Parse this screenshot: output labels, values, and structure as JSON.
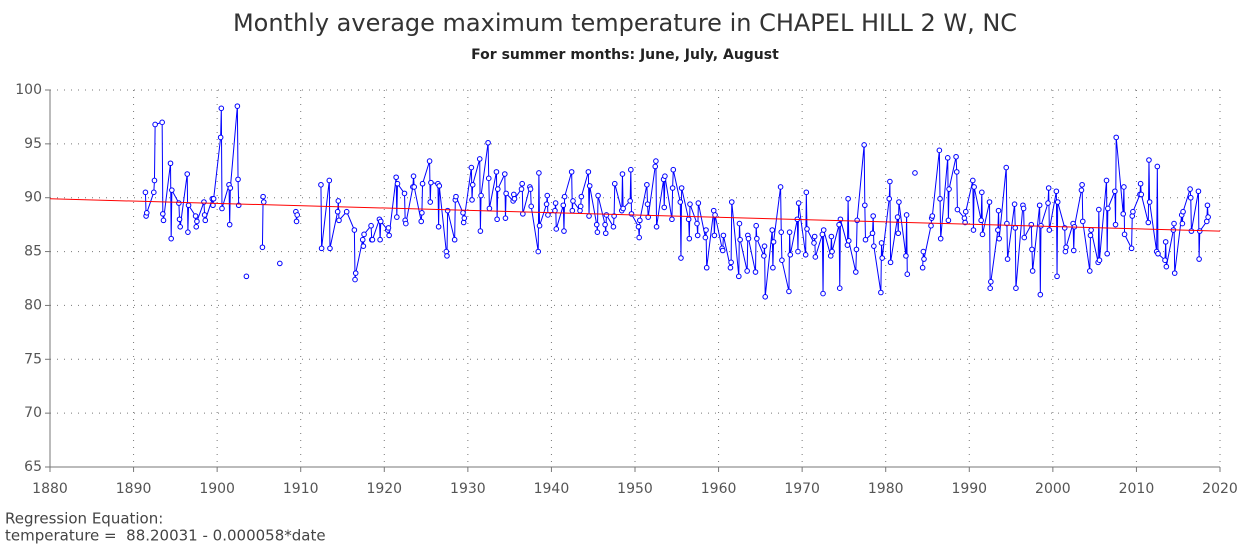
{
  "chart_data": {
    "type": "line",
    "title": "Monthly average maximum temperature in CHAPEL HILL 2 W, NC",
    "subtitle": "For summer months: June, July, August",
    "regression_label": "Regression Equation:",
    "regression_equation": "temperature =  88.20031 - 0.000058*date",
    "xlim": [
      1880,
      2020
    ],
    "xticks": [
      1880,
      1890,
      1900,
      1910,
      1920,
      1930,
      1940,
      1950,
      1960,
      1970,
      1980,
      1990,
      2000,
      2010,
      2020
    ],
    "ylim": [
      65,
      100
    ],
    "yticks": [
      65,
      70,
      75,
      80,
      85,
      90,
      95,
      100
    ],
    "grid": true,
    "series": [
      {
        "color": "#0000ff",
        "markers": true,
        "x": [
          1891.42,
          1891.5,
          1891.58,
          1892.42,
          1892.5,
          1892.58,
          1893.42,
          1893.5,
          1893.58,
          1894.42,
          1894.5,
          1894.58,
          1895.42,
          1895.5,
          1895.58,
          1896.42,
          1896.5,
          1896.58,
          1897.42,
          1897.5,
          1897.58,
          1898.42,
          1898.5,
          1898.58,
          1899.42,
          1899.5,
          1899.58,
          1900.42,
          1900.5,
          1900.58,
          1901.42,
          1901.5,
          1901.58,
          1902.42,
          1902.5,
          1902.58,
          1902.9,
          1903.5,
          1904.2,
          1905.42,
          1905.5,
          1905.58,
          1906.2,
          1907.5,
          1908.5,
          1909.42,
          1909.5,
          1909.58,
          1911.0,
          1912.42,
          1912.5,
          1913.42,
          1913.5,
          1914.42,
          1914.5,
          1914.58,
          1915.5,
          1916.42,
          1916.5,
          1916.58,
          1917.42,
          1917.5,
          1917.58,
          1918.42,
          1918.5,
          1918.58,
          1919.42,
          1919.5,
          1919.58,
          1920.42,
          1920.5,
          1920.58,
          1921.42,
          1921.5,
          1921.58,
          1922.42,
          1922.5,
          1922.58,
          1923.42,
          1923.5,
          1923.58,
          1924.42,
          1924.5,
          1924.58,
          1925.42,
          1925.5,
          1925.58,
          1926.42,
          1926.5,
          1926.58,
          1927.42,
          1927.5,
          1927.58,
          1928.42,
          1928.5,
          1928.58,
          1929.42,
          1929.5,
          1929.58,
          1930.42,
          1930.5,
          1930.58,
          1931.42,
          1931.5,
          1931.58,
          1932.42,
          1932.5,
          1932.58,
          1933.42,
          1933.5,
          1933.58,
          1934.42,
          1934.5,
          1934.58,
          1935.42,
          1935.5,
          1935.58,
          1936.42,
          1936.5,
          1936.58,
          1937.42,
          1937.5,
          1937.58,
          1938.42,
          1938.5,
          1938.58,
          1939.42,
          1939.5,
          1939.58,
          1940.42,
          1940.5,
          1940.58,
          1941.42,
          1941.5,
          1941.58,
          1942.42,
          1942.5,
          1942.58,
          1943.42,
          1943.5,
          1943.58,
          1944.42,
          1944.5,
          1944.58,
          1945.42,
          1945.5,
          1945.58,
          1946.42,
          1946.5,
          1946.58,
          1947.42,
          1947.5,
          1947.58,
          1948.42,
          1948.5,
          1948.58,
          1949.42,
          1949.5,
          1949.58,
          1950.42,
          1950.5,
          1950.58,
          1951.42,
          1951.5,
          1951.58,
          1952.42,
          1952.5,
          1952.58,
          1953.42,
          1953.5,
          1953.58,
          1954.42,
          1954.5,
          1954.58,
          1955.42,
          1955.5,
          1955.58,
          1956.42,
          1956.5,
          1956.58,
          1957.42,
          1957.5,
          1957.58,
          1958.42,
          1958.5,
          1958.58,
          1959.42,
          1959.5,
          1959.58,
          1960.42,
          1960.5,
          1960.58,
          1961.42,
          1961.5,
          1961.58,
          1962.42,
          1962.5,
          1962.58,
          1963.42,
          1963.5,
          1963.58,
          1964.42,
          1964.5,
          1964.58,
          1965.42,
          1965.5,
          1965.58,
          1966.42,
          1966.5,
          1966.58,
          1967.42,
          1967.5,
          1967.58,
          1968.42,
          1968.5,
          1968.58,
          1969.42,
          1969.5,
          1969.58,
          1970.42,
          1970.5,
          1970.58,
          1971.42,
          1971.5,
          1971.58,
          1972.42,
          1972.5,
          1972.58,
          1973.42,
          1973.5,
          1973.58,
          1974.42,
          1974.5,
          1974.58,
          1975.42,
          1975.5,
          1975.58,
          1976.42,
          1976.5,
          1976.58,
          1977.42,
          1977.5,
          1977.58,
          1978.42,
          1978.5,
          1978.58,
          1979.42,
          1979.5,
          1979.58,
          1980.42,
          1980.5,
          1980.58,
          1981.42,
          1981.5,
          1981.58,
          1982.42,
          1982.5,
          1982.58,
          1983.0,
          1983.5,
          1984.0,
          1984.42,
          1984.5,
          1984.58,
          1985.42,
          1985.5,
          1985.58,
          1986.42,
          1986.5,
          1986.58,
          1987.42,
          1987.5,
          1987.58,
          1988.42,
          1988.5,
          1988.58,
          1989.42,
          1989.5,
          1989.58,
          1990.42,
          1990.5,
          1990.58,
          1991.42,
          1991.5,
          1991.58,
          1992.42,
          1992.5,
          1992.58,
          1993.42,
          1993.5,
          1993.58,
          1994.42,
          1994.5,
          1994.58,
          1995.42,
          1995.5,
          1995.58,
          1996.42,
          1996.5,
          1996.58,
          1997.42,
          1997.5,
          1997.58,
          1998.42,
          1998.5,
          1998.58,
          1999.42,
          1999.5,
          1999.58,
          2000.42,
          2000.5,
          2000.58,
          2001.42,
          2001.5,
          2001.58,
          2002.42,
          2002.5,
          2002.58,
          2003.42,
          2003.5,
          2003.58,
          2004.42,
          2004.5,
          2004.58,
          2005.42,
          2005.5,
          2005.58,
          2006.42,
          2006.5,
          2006.58,
          2007.42,
          2007.5,
          2007.58,
          2008.42,
          2008.5,
          2008.58,
          2009.42,
          2009.5,
          2009.58,
          2010.42,
          2010.5,
          2010.58,
          2011.42,
          2011.5,
          2011.58,
          2012.42,
          2012.5,
          2012.58,
          2013.42,
          2013.5,
          2013.58,
          2014.42,
          2014.5,
          2014.58,
          2015.42,
          2015.5,
          2015.58,
          2016.42,
          2016.5,
          2016.58,
          2017.42,
          2017.5,
          2017.58,
          2018.42,
          2018.5,
          2018.58
        ],
        "values": [
          90.5,
          88.3,
          88.6,
          90.5,
          91.6,
          96.8,
          97.0,
          88.5,
          87.9,
          93.2,
          86.2,
          90.7,
          89.5,
          88.0,
          87.3,
          92.2,
          86.8,
          89.3,
          88.3,
          87.3,
          87.8,
          89.6,
          88.4,
          87.9,
          89.9,
          89.3,
          89.9,
          95.6,
          98.3,
          89.0,
          91.2,
          87.5,
          90.9,
          98.5,
          91.7,
          89.3,
          null,
          82.7,
          null,
          85.4,
          90.1,
          89.6,
          null,
          83.9,
          null,
          88.7,
          87.8,
          88.4,
          null,
          91.2,
          85.3,
          91.6,
          85.3,
          88.7,
          89.7,
          87.9,
          88.7,
          87.0,
          82.4,
          83.0,
          86.1,
          85.5,
          86.6,
          87.4,
          86.1,
          86.1,
          88.0,
          86.1,
          87.8,
          87.0,
          87.2,
          86.5,
          91.9,
          88.2,
          91.3,
          90.4,
          87.9,
          87.6,
          91.0,
          92.0,
          91.0,
          87.8,
          88.6,
          91.3,
          93.4,
          89.6,
          91.4,
          91.3,
          87.3,
          91.1,
          85.0,
          84.6,
          88.8,
          86.1,
          89.8,
          90.1,
          88.6,
          87.7,
          88.1,
          92.8,
          89.8,
          91.2,
          93.6,
          86.9,
          90.2,
          95.1,
          91.8,
          89.0,
          92.4,
          88.0,
          90.8,
          92.2,
          88.1,
          90.4,
          89.7,
          90.3,
          89.9,
          90.8,
          91.3,
          88.5,
          91.0,
          90.8,
          89.2,
          85.0,
          92.3,
          87.4,
          89.4,
          90.2,
          88.4,
          88.8,
          89.5,
          87.1,
          89.3,
          86.9,
          90.1,
          92.4,
          88.8,
          89.7,
          88.8,
          89.2,
          90.1,
          92.4,
          88.3,
          91.1,
          87.5,
          86.8,
          90.2,
          87.5,
          86.7,
          88.4,
          87.3,
          88.3,
          91.3,
          88.8,
          92.2,
          89.0,
          89.7,
          92.6,
          88.5,
          87.3,
          86.3,
          87.9,
          91.2,
          89.4,
          88.2,
          92.9,
          93.4,
          87.3,
          91.7,
          89.1,
          92.0,
          88.0,
          90.9,
          92.6,
          89.6,
          84.4,
          90.9,
          88.0,
          86.2,
          89.4,
          87.6,
          86.5,
          89.5,
          86.3,
          87.0,
          83.5,
          88.8,
          86.5,
          88.4,
          85.3,
          85.1,
          86.5,
          83.5,
          84.0,
          89.6,
          82.7,
          87.6,
          86.1,
          83.2,
          86.5,
          86.2,
          83.1,
          87.4,
          86.2,
          84.6,
          85.5,
          80.8,
          87.0,
          83.5,
          85.9,
          91.0,
          86.8,
          84.2,
          81.3,
          86.8,
          84.7,
          88.0,
          85.0,
          89.5,
          84.7,
          90.5,
          87.1,
          85.8,
          86.4,
          84.5,
          86.6,
          81.1,
          87.0,
          84.6,
          86.4,
          85.0,
          87.5,
          81.6,
          88.0,
          85.6,
          89.9,
          86.0,
          83.1,
          85.2,
          87.9,
          94.9,
          89.3,
          86.1,
          86.7,
          88.3,
          85.5,
          81.2,
          85.8,
          84.4,
          89.9,
          91.5,
          84.0,
          88.2,
          86.7,
          89.6,
          84.6,
          88.4,
          82.9,
          null,
          92.3,
          null,
          83.5,
          85.0,
          84.3,
          87.4,
          88.1,
          88.3,
          94.4,
          89.9,
          86.2,
          93.7,
          87.9,
          90.8,
          93.8,
          92.4,
          88.9,
          88.1,
          87.7,
          88.7,
          91.6,
          87.0,
          91.0,
          87.9,
          90.5,
          86.6,
          89.6,
          81.6,
          82.2,
          87.0,
          88.8,
          86.2,
          92.8,
          87.6,
          84.3,
          89.4,
          87.2,
          81.6,
          89.3,
          89.0,
          86.3,
          87.5,
          85.2,
          83.2,
          89.3,
          81.0,
          87.4,
          89.5,
          90.9,
          87.0,
          90.6,
          82.7,
          89.6,
          87.2,
          85.0,
          85.4,
          87.6,
          85.1,
          87.3,
          90.7,
          91.2,
          87.8,
          83.2,
          86.5,
          87.0,
          84.0,
          88.9,
          84.2,
          91.6,
          84.8,
          89.0,
          90.6,
          87.5,
          95.6,
          88.5,
          91.0,
          86.6,
          85.3,
          88.3,
          88.7,
          90.3,
          91.3,
          90.3,
          87.7,
          93.5,
          89.6,
          85.0,
          92.9,
          84.8,
          84.2,
          85.9,
          83.6,
          87.0,
          87.6,
          83.0,
          88.4,
          87.6,
          88.7,
          90.8,
          90.0,
          86.9,
          90.6,
          84.3,
          86.9,
          87.8,
          89.3,
          88.2
        ]
      },
      {
        "color": "#ff0000",
        "markers": false,
        "x": [
          1880,
          2020
        ],
        "values": [
          89.9,
          86.9
        ]
      }
    ]
  }
}
